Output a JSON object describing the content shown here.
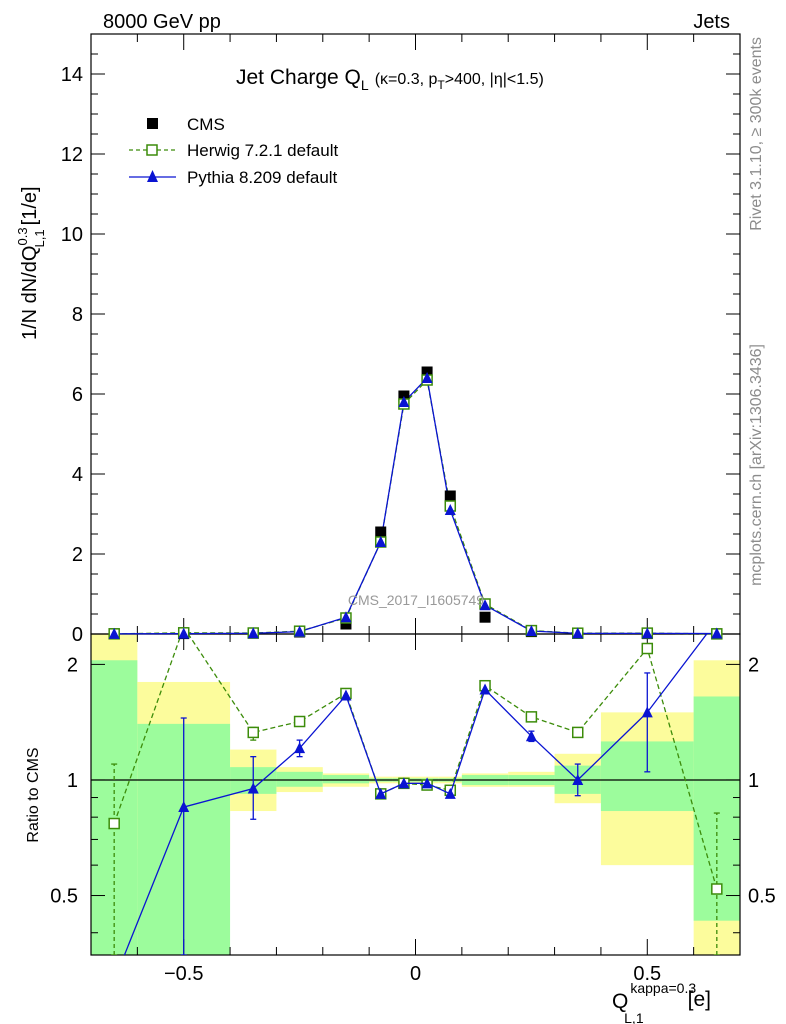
{
  "header": {
    "left": "8000 GeV pp",
    "right": "Jets"
  },
  "side_labels": {
    "rivet": "Rivet 3.1.10, ≥ 300k events",
    "mcplots": "mcplots.cern.ch [arXiv:1306.3436]"
  },
  "chart_data": [
    {
      "type": "scatter",
      "title": "Jet Charge Q",
      "title_sub": "L",
      "title_extra": "(κ=0.3, p",
      "title_extra_sub": "T",
      "title_extra_rest": ">400, |η|<1.5)",
      "watermark": "CMS_2017_I1605749",
      "ylabel": "1/N dN/dQ",
      "ylabel_sup": "0.3",
      "ylabel_sub": "L,1",
      "ylabel_unit": "[1/e]",
      "xlim": [
        -0.7,
        0.7
      ],
      "ylim": [
        0,
        15
      ],
      "y_ticks": [
        0,
        2,
        4,
        6,
        8,
        10,
        12,
        14
      ],
      "legend_position": "top-left",
      "x": [
        -0.65,
        -0.5,
        -0.35,
        -0.25,
        -0.15,
        -0.075,
        -0.025,
        0.025,
        0.075,
        0.15,
        0.25,
        0.35,
        0.5,
        0.65
      ],
      "series": [
        {
          "name": "CMS",
          "color": "#000000",
          "marker": "square-filled",
          "values": [
            0.005,
            0.01,
            0.02,
            0.05,
            0.25,
            2.55,
            5.95,
            6.55,
            3.45,
            0.42,
            0.06,
            0.015,
            0.01,
            0.005
          ]
        },
        {
          "name": "Herwig 7.2.1 default",
          "color": "#3c8c0a",
          "marker": "square-open",
          "line": "dashed",
          "values": [
            0.004,
            0.03,
            0.025,
            0.07,
            0.4,
            2.3,
            5.75,
            6.35,
            3.2,
            0.75,
            0.085,
            0.02,
            0.022,
            0.003
          ]
        },
        {
          "name": "Pythia 8.209 default",
          "color": "#0a14d2",
          "marker": "triangle-filled",
          "line": "solid",
          "values": [
            0.003,
            0.009,
            0.018,
            0.06,
            0.42,
            2.3,
            5.8,
            6.4,
            3.1,
            0.72,
            0.075,
            0.015,
            0.015,
            0.012
          ]
        }
      ]
    },
    {
      "type": "line",
      "ylabel": "Ratio to CMS",
      "xlabel": "Q",
      "xlabel_sup": "kappa=0.3",
      "xlabel_sub": "L,1",
      "xlabel_unit": "[e]",
      "xlim": [
        -0.7,
        0.7
      ],
      "ylim": [
        0.35,
        2.4
      ],
      "x_ticks": [
        -0.5,
        0,
        0.5
      ],
      "x_tick_labels": [
        "−0.5",
        "0",
        "0.5"
      ],
      "y_ticks": [
        0.5,
        1,
        2
      ],
      "y_tick_labels": [
        "0.5",
        "1",
        "2"
      ],
      "bins": [
        [
          -0.7,
          -0.6
        ],
        [
          -0.6,
          -0.4
        ],
        [
          -0.4,
          -0.3
        ],
        [
          -0.3,
          -0.2
        ],
        [
          -0.2,
          -0.1
        ],
        [
          -0.1,
          -0.05
        ],
        [
          -0.05,
          0
        ],
        [
          0,
          0.05
        ],
        [
          0.05,
          0.1
        ],
        [
          0.1,
          0.2
        ],
        [
          0.2,
          0.3
        ],
        [
          0.3,
          0.4
        ],
        [
          0.4,
          0.6
        ],
        [
          0.6,
          0.7
        ]
      ],
      "uncertainty_band_inner": [
        [
          0.3,
          2.05
        ],
        [
          0.3,
          1.4
        ],
        [
          0.92,
          1.08
        ],
        [
          0.96,
          1.05
        ],
        [
          0.98,
          1.03
        ],
        [
          0.99,
          1.01
        ],
        [
          0.99,
          1.01
        ],
        [
          0.99,
          1.01
        ],
        [
          0.99,
          1.01
        ],
        [
          0.97,
          1.03
        ],
        [
          0.97,
          1.03
        ],
        [
          0.92,
          1.09
        ],
        [
          0.83,
          1.26
        ],
        [
          0.43,
          1.65
        ]
      ],
      "uncertainty_band_outer": [
        [
          0.3,
          2.55
        ],
        [
          0.66,
          1.8
        ],
        [
          0.83,
          1.2
        ],
        [
          0.93,
          1.08
        ],
        [
          0.96,
          1.04
        ],
        [
          0.98,
          1.02
        ],
        [
          0.98,
          1.02
        ],
        [
          0.98,
          1.02
        ],
        [
          0.98,
          1.02
        ],
        [
          0.96,
          1.04
        ],
        [
          0.96,
          1.05
        ],
        [
          0.87,
          1.17
        ],
        [
          0.6,
          1.5
        ],
        [
          0.3,
          2.05
        ]
      ],
      "x": [
        -0.65,
        -0.5,
        -0.35,
        -0.25,
        -0.15,
        -0.075,
        -0.025,
        0.025,
        0.075,
        0.15,
        0.25,
        0.35,
        0.5,
        0.65
      ],
      "series": [
        {
          "name": "Herwig 7.2.1 default",
          "color": "#3c8c0a",
          "marker": "square-open",
          "line": "dashed",
          "values": [
            0.77,
            2.5,
            1.33,
            1.42,
            1.68,
            0.92,
            0.98,
            0.97,
            0.94,
            1.76,
            1.46,
            1.33,
            2.2,
            0.52
          ],
          "err_low": [
            0.42,
            0,
            0.06,
            0,
            0,
            0,
            0,
            0,
            0,
            0,
            0,
            0,
            0,
            0.17
          ],
          "err_high": [
            0.33,
            0,
            0.04,
            0,
            0,
            0,
            0,
            0,
            0,
            0,
            0,
            0,
            0,
            0.3
          ]
        },
        {
          "name": "Pythia 8.209 default",
          "color": "#0a14d2",
          "marker": "triangle-filled",
          "line": "solid",
          "values": [
            0.3,
            0.85,
            0.95,
            1.21,
            1.66,
            0.92,
            0.98,
            0.98,
            0.92,
            1.72,
            1.3,
            1.0,
            1.5,
            2.6
          ],
          "err_low": [
            0,
            0.55,
            0.16,
            0.06,
            0,
            0,
            0,
            0,
            0,
            0,
            0.04,
            0.09,
            0.45,
            0
          ],
          "err_high": [
            0,
            0.6,
            0.2,
            0.06,
            0,
            0,
            0,
            0,
            0,
            0,
            0.04,
            0.1,
            0.4,
            0
          ]
        }
      ]
    }
  ],
  "colors": {
    "band_inner": "#9cfc9c",
    "band_outer": "#fcfc9c",
    "axis": "#000000",
    "side_text": "#8c8c8c",
    "watermark": "#999999"
  }
}
